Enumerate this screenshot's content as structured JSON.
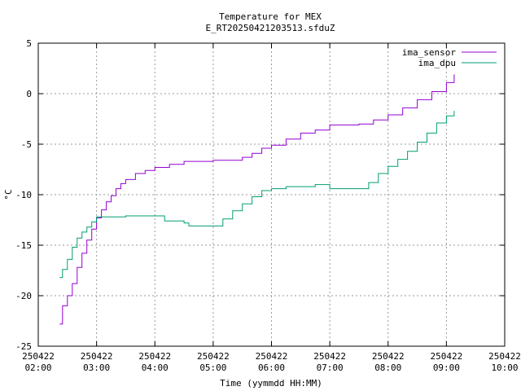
{
  "chart_data": {
    "type": "line",
    "title": "Temperature for MEX",
    "subtitle": "E_RT20250421203513.sfduZ",
    "xlabel": "Time (yymmdd HH:MM)",
    "ylabel": "°C",
    "xlim": [
      "250422 02:00",
      "250422 10:00"
    ],
    "ylim": [
      -25,
      5
    ],
    "grid": true,
    "legend_position": "top-right",
    "x_ticks": [
      {
        "date": "250422",
        "time": "02:00"
      },
      {
        "date": "250422",
        "time": "03:00"
      },
      {
        "date": "250422",
        "time": "04:00"
      },
      {
        "date": "250422",
        "time": "05:00"
      },
      {
        "date": "250422",
        "time": "06:00"
      },
      {
        "date": "250422",
        "time": "07:00"
      },
      {
        "date": "250422",
        "time": "08:00"
      },
      {
        "date": "250422",
        "time": "09:00"
      },
      {
        "date": "250422",
        "time": "10:00"
      }
    ],
    "y_ticks": [
      "5",
      "0",
      "-5",
      "-10",
      "-15",
      "-20",
      "-25"
    ],
    "series": [
      {
        "name": "ima_sensor",
        "color": "#9400d3",
        "x": [
          "250422 02:22",
          "250422 02:25",
          "250422 02:30",
          "250422 02:35",
          "250422 02:40",
          "250422 02:45",
          "250422 02:50",
          "250422 02:55",
          "250422 03:00",
          "250422 03:05",
          "250422 03:10",
          "250422 03:15",
          "250422 03:20",
          "250422 03:25",
          "250422 03:30",
          "250422 03:40",
          "250422 03:50",
          "250422 04:00",
          "250422 04:15",
          "250422 04:30",
          "250422 05:00",
          "250422 05:30",
          "250422 05:40",
          "250422 05:50",
          "250422 06:00",
          "250422 06:15",
          "250422 06:30",
          "250422 06:45",
          "250422 07:00",
          "250422 07:30",
          "250422 07:45",
          "250422 08:00",
          "250422 08:15",
          "250422 08:30",
          "250422 08:45",
          "250422 09:00",
          "250422 09:08"
        ],
        "values": [
          -22.8,
          -21.0,
          -20.0,
          -18.8,
          -17.2,
          -15.8,
          -14.5,
          -13.4,
          -12.3,
          -11.5,
          -10.7,
          -10.1,
          -9.4,
          -8.9,
          -8.5,
          -7.9,
          -7.6,
          -7.3,
          -7.0,
          -6.7,
          -6.6,
          -6.3,
          -5.9,
          -5.4,
          -5.1,
          -4.5,
          -3.9,
          -3.6,
          -3.1,
          -3.0,
          -2.6,
          -2.1,
          -1.4,
          -0.6,
          0.2,
          1.1,
          1.9
        ]
      },
      {
        "name": "ima_dpu",
        "color": "#009e73",
        "x": [
          "250422 02:22",
          "250422 02:25",
          "250422 02:30",
          "250422 02:35",
          "250422 02:40",
          "250422 02:45",
          "250422 02:50",
          "250422 02:55",
          "250422 03:00",
          "250422 03:30",
          "250422 04:00",
          "250422 04:10",
          "250422 04:30",
          "250422 04:35",
          "250422 05:00",
          "250422 05:10",
          "250422 05:20",
          "250422 05:30",
          "250422 05:40",
          "250422 05:50",
          "250422 06:00",
          "250422 06:15",
          "250422 06:30",
          "250422 06:45",
          "250422 07:00",
          "250422 07:30",
          "250422 07:40",
          "250422 07:50",
          "250422 08:00",
          "250422 08:10",
          "250422 08:20",
          "250422 08:30",
          "250422 08:40",
          "250422 08:50",
          "250422 09:00",
          "250422 09:08"
        ],
        "values": [
          -18.2,
          -17.4,
          -16.4,
          -15.2,
          -14.3,
          -13.7,
          -13.2,
          -12.7,
          -12.2,
          -12.1,
          -12.1,
          -12.6,
          -12.8,
          -13.1,
          -13.1,
          -12.4,
          -11.6,
          -10.9,
          -10.2,
          -9.6,
          -9.4,
          -9.2,
          -9.2,
          -9.0,
          -9.4,
          -9.4,
          -8.8,
          -7.9,
          -7.2,
          -6.5,
          -5.7,
          -4.8,
          -3.9,
          -2.9,
          -2.2,
          -1.7
        ]
      }
    ]
  }
}
